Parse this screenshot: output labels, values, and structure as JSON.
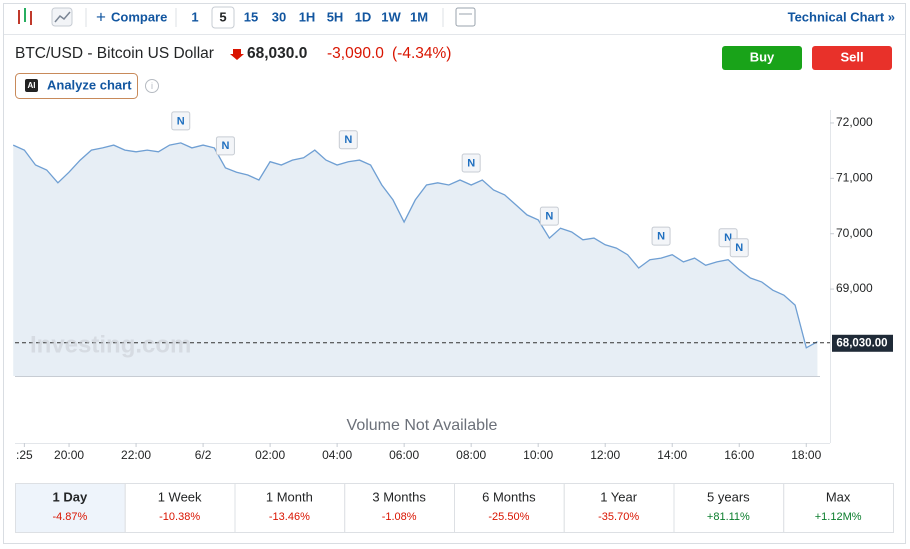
{
  "toolbar": {
    "compare": "Compare",
    "intervals": [
      "1",
      "5",
      "15",
      "30",
      "1H",
      "5H",
      "1D",
      "1W",
      "1M"
    ],
    "technical": "Technical Chart »"
  },
  "header": {
    "title": "BTC/USD - Bitcoin US Dollar",
    "price": "68,030.0",
    "change": "-3,090.0",
    "change_pct": "(-4.34%)",
    "analyze": "Analyze chart",
    "buy": "Buy",
    "sell": "Sell"
  },
  "chart_data": {
    "type": "line",
    "watermark": "Investing.com",
    "color": "#6f9fd3",
    "categories": [
      null,
      ":25",
      null,
      null,
      null,
      "20:00",
      null,
      null,
      null,
      null,
      null,
      "22:00",
      null,
      null,
      null,
      null,
      null,
      "6/2",
      null,
      null,
      null,
      null,
      null,
      "02:00",
      null,
      null,
      null,
      null,
      null,
      "04:00",
      null,
      null,
      null,
      null,
      null,
      "06:00",
      null,
      null,
      null,
      null,
      null,
      "08:00",
      null,
      null,
      null,
      null,
      null,
      "10:00",
      null,
      null,
      null,
      null,
      null,
      "12:00",
      null,
      null,
      null,
      null,
      null,
      "14:00",
      null,
      null,
      null,
      null,
      null,
      "16:00",
      null,
      null,
      null,
      null,
      null,
      "18:00",
      null
    ],
    "values": [
      71600,
      71510,
      71240,
      71150,
      70920,
      71110,
      71330,
      71510,
      71550,
      71600,
      71510,
      71480,
      71510,
      71480,
      71600,
      71640,
      71550,
      71600,
      71550,
      71190,
      71110,
      71060,
      70970,
      71300,
      71240,
      71330,
      71370,
      71510,
      71330,
      71240,
      71300,
      71330,
      71240,
      70880,
      70610,
      70210,
      70610,
      70880,
      70920,
      70880,
      70970,
      70880,
      70970,
      70790,
      70700,
      70520,
      70340,
      70250,
      69920,
      70100,
      70030,
      69890,
      69920,
      69800,
      69740,
      69620,
      69380,
      69530,
      69560,
      69620,
      69490,
      69560,
      69430,
      69490,
      69530,
      69350,
      69200,
      69130,
      68980,
      68890,
      68710,
      67940,
      68050
    ],
    "ylim": [
      67430,
      72180
    ],
    "yticks": [
      {
        "value": 69000,
        "label": "69,000"
      },
      {
        "value": 70000,
        "label": "70,000"
      },
      {
        "value": 71000,
        "label": "71,000"
      },
      {
        "value": 72000,
        "label": "72,000"
      }
    ],
    "last_price": {
      "value": 68030,
      "label": "68,030.00"
    },
    "news": {
      "label": "N",
      "at": [
        15,
        19,
        30,
        41,
        48,
        58,
        64,
        65
      ]
    },
    "volume_note": "Volume Not Available"
  },
  "ranges": [
    {
      "label": "1 Day",
      "change": "-4.87%"
    },
    {
      "label": "1 Week",
      "change": "-10.38%"
    },
    {
      "label": "1 Month",
      "change": "-13.46%"
    },
    {
      "label": "3 Months",
      "change": "-1.08%"
    },
    {
      "label": "6 Months",
      "change": "-25.50%"
    },
    {
      "label": "1 Year",
      "change": "-35.70%"
    },
    {
      "label": "5 years",
      "change": "+81.11%"
    },
    {
      "label": "Max",
      "change": "+1.12M%"
    }
  ]
}
